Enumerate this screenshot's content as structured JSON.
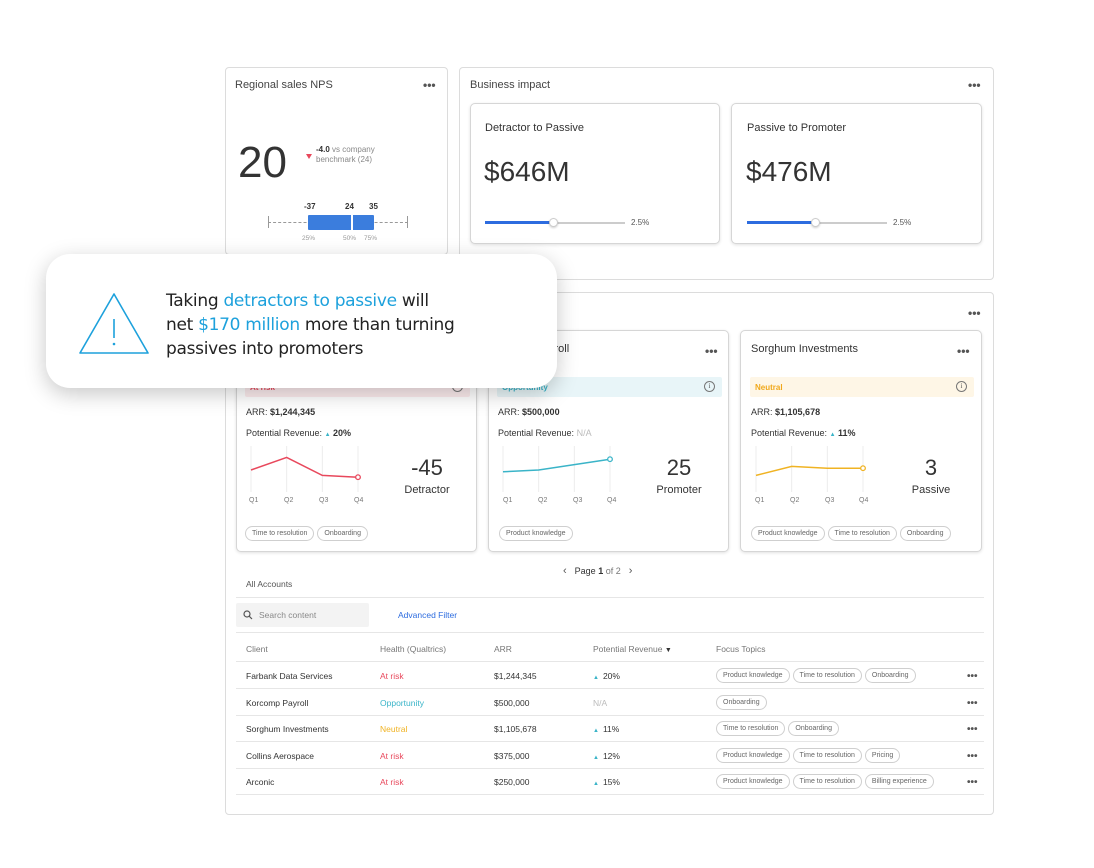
{
  "nps": {
    "title": "Regional sales NPS",
    "score": "20",
    "delta": "-4.0",
    "delta_text": "vs company",
    "benchmark_text": "benchmark (24)",
    "box_labels": [
      "-37",
      "24",
      "35"
    ],
    "pct_labels": [
      "25%",
      "50%",
      "75%"
    ]
  },
  "impact": {
    "title": "Business impact",
    "cards": [
      {
        "title": "Detractor to Passive",
        "value": "$646M",
        "pct": "2.5%",
        "slider_value": 0.45
      },
      {
        "title": "Passive to Promoter",
        "value": "$476M",
        "pct": "2.5%",
        "slider_value": 0.45
      }
    ]
  },
  "callout": {
    "line1_pre": "Taking ",
    "line1_hl": "detractors to passive",
    "line1_post": " will",
    "line2_pre": "net ",
    "line2_hl": "$170 million",
    "line2_post": " more than turning",
    "line3": "passives into promoters",
    "accent": "#1da1dc"
  },
  "accounts_cards": [
    {
      "name": "",
      "status": "At risk",
      "arr_label": "ARR:",
      "arr": "$1,244,345",
      "pr_label": "Potential Revenue:",
      "pr": "20%",
      "score": "-45",
      "category": "Detractor",
      "quarters": [
        "Q1",
        "Q2",
        "Q3",
        "Q4"
      ],
      "trend": [
        0.5,
        0.85,
        0.35,
        0.3
      ],
      "color": "#e8485c",
      "tags": [
        "Time to resolution",
        "Onboarding"
      ]
    },
    {
      "name": "yroll",
      "status": "Opportunity",
      "arr_label": "ARR:",
      "arr": "$500,000",
      "pr_label": "Potential Revenue:",
      "pr": "N/A",
      "score": "25",
      "category": "Promoter",
      "quarters": [
        "Q1",
        "Q2",
        "Q3",
        "Q4"
      ],
      "trend": [
        0.45,
        0.5,
        0.65,
        0.8
      ],
      "color": "#3ab4c8",
      "tags": [
        "Product knowledge"
      ]
    },
    {
      "name": "Sorghum Investments",
      "status": "Neutral",
      "arr_label": "ARR:",
      "arr": "$1,105,678",
      "pr_label": "Potential Revenue:",
      "pr": "11%",
      "score": "3",
      "category": "Passive",
      "quarters": [
        "Q1",
        "Q2",
        "Q3",
        "Q4"
      ],
      "trend": [
        0.35,
        0.6,
        0.55,
        0.55
      ],
      "color": "#f0b323",
      "tags": [
        "Product knowledge",
        "Time to resolution",
        "Onboarding"
      ]
    }
  ],
  "pagination": {
    "label": "Page",
    "current": "1",
    "of": "of 2"
  },
  "table": {
    "section_title": "All Accounts",
    "search_placeholder": "Search content",
    "advanced_filter": "Advanced Filter",
    "headers": [
      "Client",
      "Health (Qualtrics)",
      "ARR",
      "Potential Revenue",
      "Focus Topics"
    ],
    "rows": [
      {
        "client": "Farbank Data Services",
        "health": "At risk",
        "health_color": "#e8485c",
        "arr": "$1,244,345",
        "pr": "20%",
        "tags": [
          "Product knowledge",
          "Time to resolution",
          "Onboarding"
        ]
      },
      {
        "client": "Korcomp Payroll",
        "health": "Opportunity",
        "health_color": "#3ab4c8",
        "arr": "$500,000",
        "pr": "N/A",
        "tags": [
          "Onboarding"
        ]
      },
      {
        "client": "Sorghum Investments",
        "health": "Neutral",
        "health_color": "#f0b323",
        "arr": "$1,105,678",
        "pr": "11%",
        "tags": [
          "Time to resolution",
          "Onboarding"
        ]
      },
      {
        "client": "Collins Aerospace",
        "health": "At risk",
        "health_color": "#e8485c",
        "arr": "$375,000",
        "pr": "12%",
        "tags": [
          "Product knowledge",
          "Time to resolution",
          "Pricing"
        ]
      },
      {
        "client": "Arconic",
        "health": "At risk",
        "health_color": "#e8485c",
        "arr": "$250,000",
        "pr": "15%",
        "tags": [
          "Product knowledge",
          "Time to resolution",
          "Billing experience"
        ]
      }
    ]
  }
}
